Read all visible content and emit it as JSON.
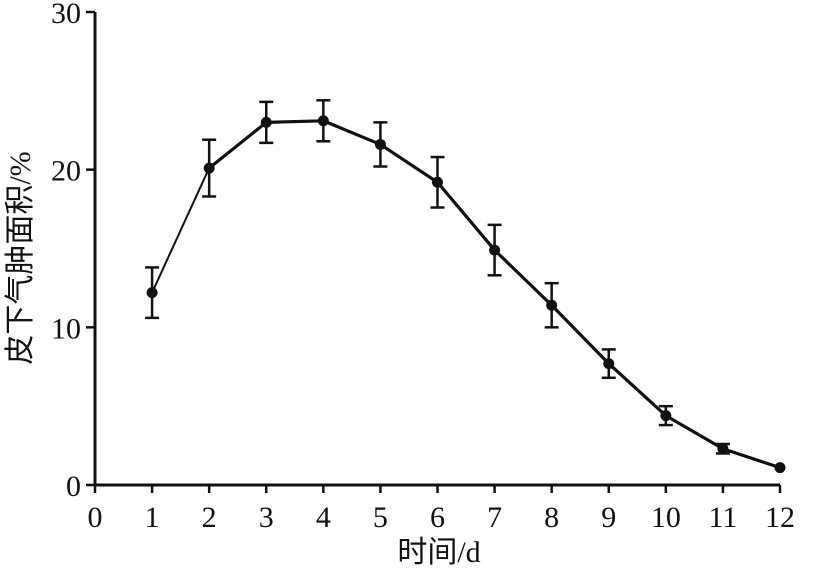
{
  "chart_data": {
    "type": "line",
    "title": "",
    "xlabel": "时间/d",
    "ylabel": "皮下气肿面积/%",
    "xlim": [
      0,
      12
    ],
    "ylim": [
      0,
      30
    ],
    "x_ticks": [
      "0",
      "1",
      "2",
      "3",
      "4",
      "5",
      "6",
      "7",
      "8",
      "9",
      "10",
      "11",
      "12"
    ],
    "y_ticks": [
      "0",
      "10",
      "20",
      "30"
    ],
    "grid": false,
    "legend": "none",
    "error_bars": true,
    "series": [
      {
        "x": [
          1,
          2,
          3,
          4,
          5,
          6,
          7,
          8,
          9,
          10,
          11,
          12
        ],
        "values": [
          12.2,
          20.1,
          23.0,
          23.1,
          21.6,
          19.2,
          14.9,
          11.4,
          7.7,
          4.4,
          2.3,
          1.1
        ],
        "error": [
          1.6,
          1.8,
          1.3,
          1.3,
          1.4,
          1.6,
          1.6,
          1.4,
          0.9,
          0.6,
          0.3,
          0.0
        ],
        "color": "#111111"
      }
    ]
  }
}
